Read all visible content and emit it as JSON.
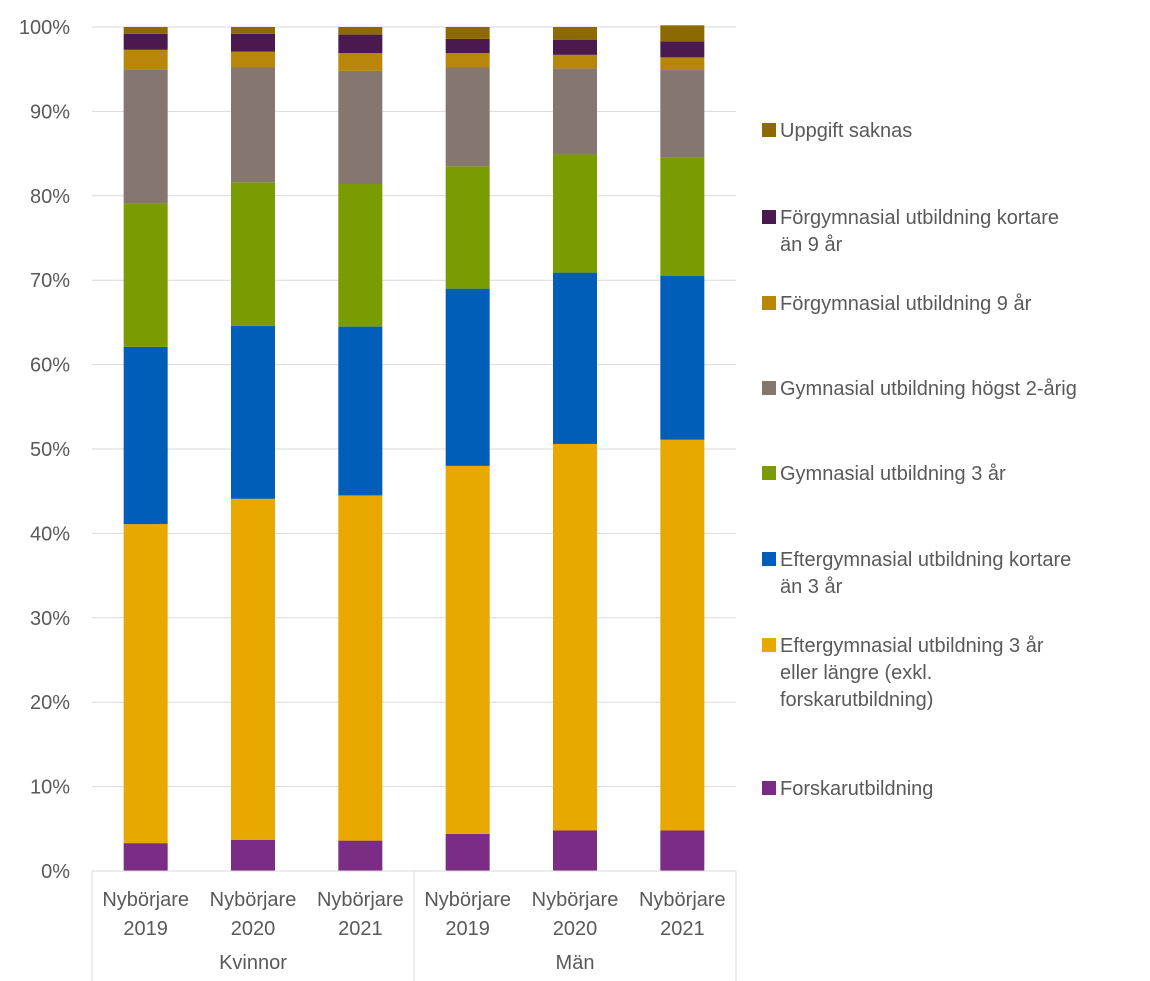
{
  "chart_data": {
    "type": "bar",
    "stacked": true,
    "percent": true,
    "y_ticks": [
      "0%",
      "10%",
      "20%",
      "30%",
      "40%",
      "50%",
      "60%",
      "70%",
      "80%",
      "90%",
      "100%"
    ],
    "ylim": [
      0,
      100
    ],
    "grid": true,
    "legend_position": "right",
    "groups": [
      "Kvinnor",
      "Män"
    ],
    "categories": [
      {
        "group": "Kvinnor",
        "lines": [
          "Nybörjare",
          "2019"
        ]
      },
      {
        "group": "Kvinnor",
        "lines": [
          "Nybörjare",
          "2020"
        ]
      },
      {
        "group": "Kvinnor",
        "lines": [
          "Nybörjare",
          "2021"
        ]
      },
      {
        "group": "Män",
        "lines": [
          "Nybörjare",
          "2019"
        ]
      },
      {
        "group": "Män",
        "lines": [
          "Nybörjare",
          "2020"
        ]
      },
      {
        "group": "Män",
        "lines": [
          "Nybörjare",
          "2021"
        ]
      }
    ],
    "series": [
      {
        "name": "Forskarutbildning",
        "color": "#7B2C85",
        "values": [
          3.3,
          3.7,
          3.6,
          4.4,
          4.8,
          4.8
        ]
      },
      {
        "name": "Eftergymnasial utbildning 3 år eller längre (exkl. forskarutbildning)",
        "color": "#E8A800",
        "values": [
          37.8,
          40.4,
          40.9,
          43.6,
          45.8,
          46.3
        ]
      },
      {
        "name": "Eftergymnasial utbildning kortare än 3 år",
        "color": "#005EB8",
        "values": [
          21.0,
          20.5,
          20.0,
          21.0,
          20.3,
          19.4
        ]
      },
      {
        "name": "Gymnasial utbildning 3 år",
        "color": "#7A9C00",
        "values": [
          17.0,
          17.0,
          16.9,
          14.5,
          14.0,
          14.0
        ]
      },
      {
        "name": "Gymnasial utbildning högst 2-årig",
        "color": "#85766F",
        "values": [
          15.9,
          13.6,
          13.4,
          11.7,
          10.2,
          10.4
        ]
      },
      {
        "name": "Förgymnasial utbildning 9 år",
        "color": "#B8860B",
        "values": [
          2.3,
          1.9,
          2.1,
          1.7,
          1.6,
          1.5
        ]
      },
      {
        "name": "Förgymnasial utbildning kortare än 9 år",
        "color": "#4A1A4F",
        "values": [
          1.9,
          2.1,
          2.2,
          1.7,
          1.8,
          1.9
        ]
      },
      {
        "name": "Uppgift saknas",
        "color": "#8C6A00",
        "values": [
          0.8,
          0.8,
          0.9,
          1.4,
          1.5,
          1.9
        ]
      }
    ],
    "legend_lines": [
      [
        "Uppgift saknas"
      ],
      [
        "Förgymnasial utbildning kortare",
        "än 9 år"
      ],
      [
        "Förgymnasial utbildning 9 år"
      ],
      [
        "Gymnasial utbildning högst 2-årig"
      ],
      [
        "Gymnasial utbildning 3 år"
      ],
      [
        "Eftergymnasial utbildning kortare",
        "än 3 år"
      ],
      [
        "Eftergymnasial utbildning 3 år",
        "eller längre (exkl.",
        "forskarutbildning)"
      ],
      [
        "Forskarutbildning"
      ]
    ]
  }
}
